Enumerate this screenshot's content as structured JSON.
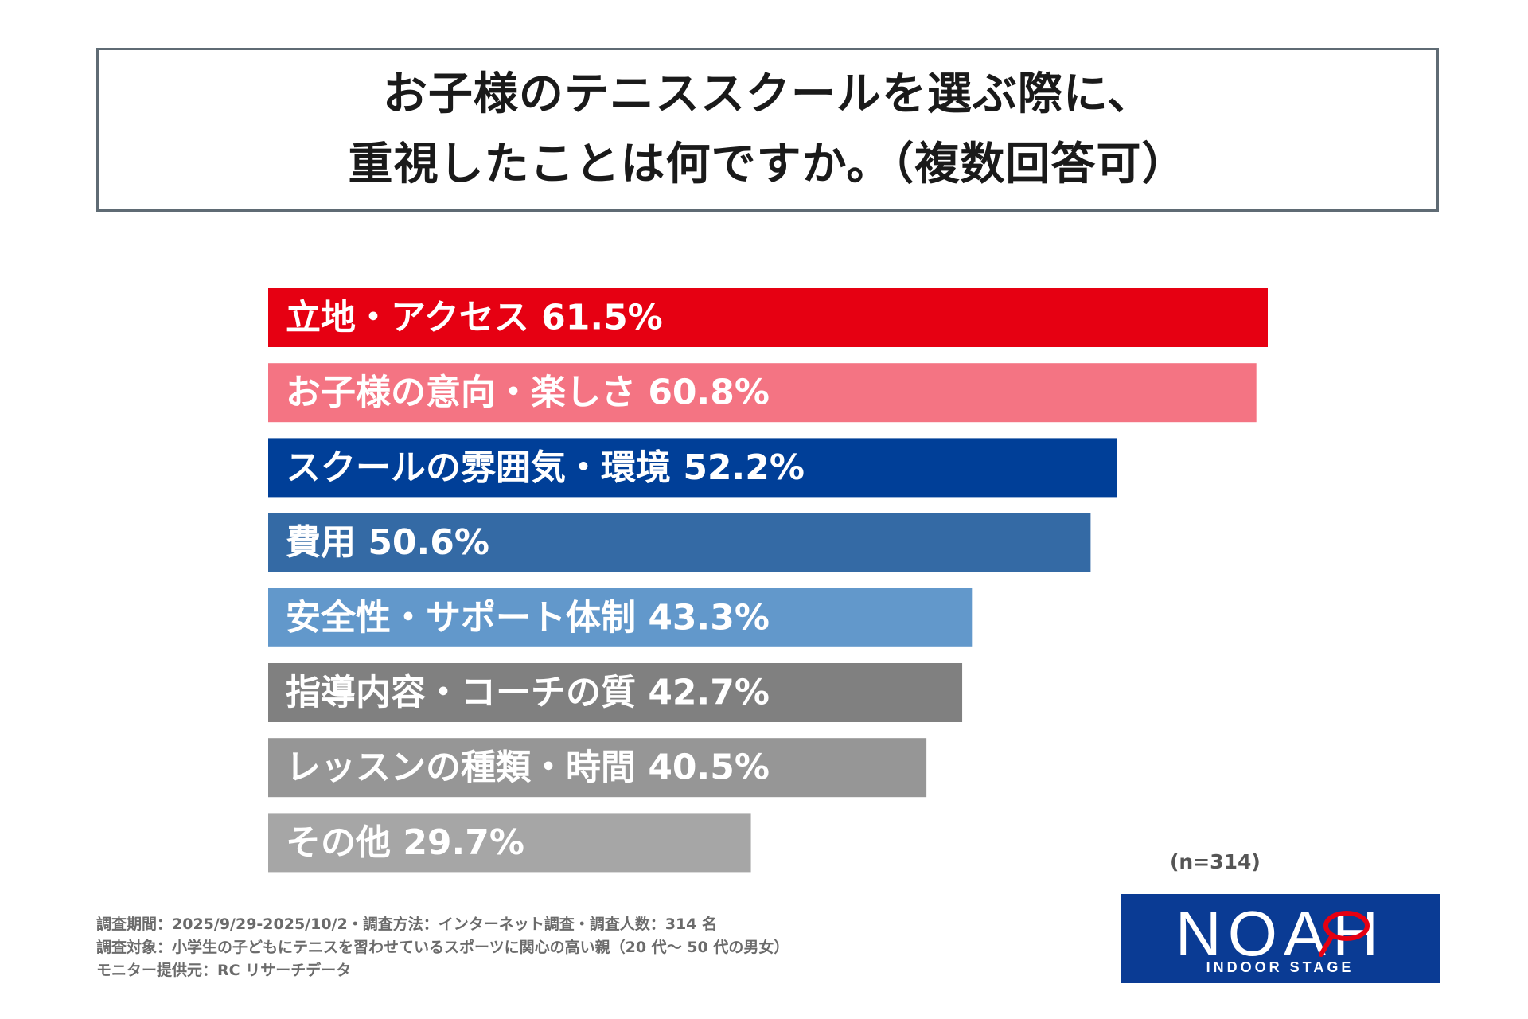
{
  "title": {
    "line1": "お子様のテニススクールを選ぶ際に、",
    "line2": "重視したことは何ですか。（複数回答可）"
  },
  "chart_data": {
    "type": "bar",
    "orientation": "horizontal",
    "title": "お子様のテニススクールを選ぶ際に、重視したことは何ですか。（複数回答可）",
    "unit": "%",
    "categories": [
      "立地・アクセス",
      "お子様の意向・楽しさ",
      "スクールの雰囲気・環境",
      "費用",
      "安全性・サポート体制",
      "指導内容・コーチの質",
      "レッスンの種類・時間",
      "その他"
    ],
    "values": [
      61.5,
      60.8,
      52.2,
      50.6,
      43.3,
      42.7,
      40.5,
      29.7
    ],
    "display_labels": [
      "立地・アクセス  61.5%",
      "お子様の意向・楽しさ  60.8%",
      "スクールの雰囲気・環境  52.2%",
      "費用  50.6%",
      "安全性・サポート体制  43.3%",
      "指導内容・コーチの質  42.7%",
      "レッスンの種類・時間  40.5%",
      "その他  29.7%"
    ],
    "colors": [
      "#e60012",
      "#f47483",
      "#003f98",
      "#346aa5",
      "#6298cb",
      "#808080",
      "#969696",
      "#a6a6a6"
    ],
    "xlim": [
      0,
      61.5
    ],
    "grid": false,
    "legend": "none"
  },
  "sample_size": "(n=314)",
  "footnotes": [
    "調査期間：2025/9/29-2025/10/2・調査方法：インターネット調査・調査人数：314 名",
    "調査対象：小学生の子どもにテニスを習わせているスポーツに関心の高い親（20 代～ 50 代の男女）",
    "モニター提供元：RC リサーチデータ"
  ],
  "logo": {
    "main": "NOAH",
    "sub": "INDOOR STAGE",
    "bg_color": "#0a3b94",
    "accent_color": "#e60012"
  }
}
